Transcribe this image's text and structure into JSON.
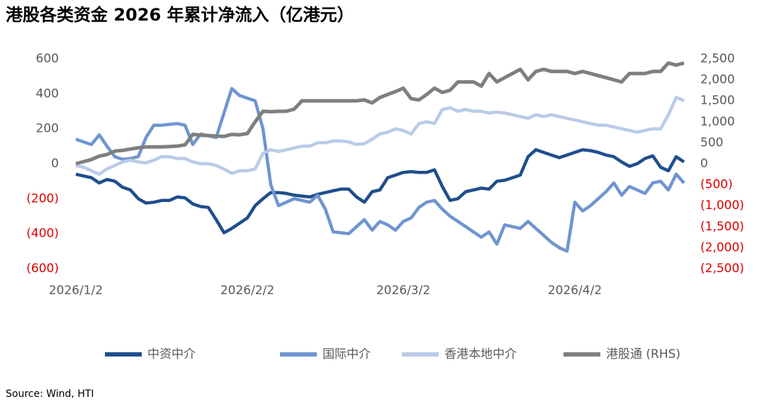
{
  "chart_data": {
    "type": "line",
    "title": "港股各类资金 2026 年累计净流入（亿港元）",
    "source": "Source: Wind, HTI",
    "categories": [
      "2026/1/2",
      null,
      null,
      null,
      null,
      null,
      null,
      null,
      null,
      null,
      null,
      null,
      null,
      null,
      null,
      null,
      null,
      null,
      null,
      null,
      null,
      null,
      "2026/2/2",
      null,
      null,
      null,
      null,
      null,
      null,
      null,
      null,
      null,
      null,
      null,
      null,
      null,
      null,
      null,
      null,
      null,
      null,
      null,
      "2026/3/2",
      null,
      null,
      null,
      null,
      null,
      null,
      null,
      null,
      null,
      null,
      null,
      null,
      null,
      null,
      null,
      null,
      null,
      null,
      null,
      null,
      null,
      "2026/4/2",
      null,
      null,
      null,
      null,
      null,
      null,
      null,
      null,
      null,
      null,
      null,
      null,
      null,
      null
    ],
    "series": [
      {
        "name": "中资中介",
        "color": "#1f4e8c",
        "values": [
          -60,
          -70,
          -80,
          -110,
          -90,
          -100,
          -135,
          -150,
          -200,
          -225,
          -220,
          -210,
          -210,
          -190,
          -195,
          -230,
          -245,
          -250,
          -320,
          -395,
          -370,
          -340,
          -310,
          -240,
          -200,
          -165,
          -165,
          -170,
          -180,
          -185,
          -190,
          -175,
          -165,
          -155,
          -145,
          -145,
          -190,
          -220,
          -160,
          -150,
          -80,
          -65,
          -50,
          -45,
          -50,
          -50,
          -35,
          -130,
          -210,
          -200,
          -160,
          -150,
          -140,
          -145,
          -100,
          -95,
          -80,
          -65,
          40,
          80,
          65,
          50,
          35,
          50,
          65,
          80,
          75,
          65,
          50,
          40,
          10,
          -15,
          0,
          30,
          45,
          -20,
          -40,
          40,
          10
        ]
      },
      {
        "name": "国际中介",
        "color": "#6f95d0",
        "values": [
          140,
          125,
          110,
          165,
          100,
          40,
          25,
          30,
          40,
          150,
          220,
          220,
          225,
          230,
          220,
          110,
          170,
          160,
          150,
          290,
          430,
          390,
          375,
          360,
          200,
          -120,
          -240,
          -220,
          -200,
          -210,
          -220,
          -180,
          -260,
          -390,
          -395,
          -400,
          -360,
          -320,
          -380,
          -330,
          -350,
          -380,
          -330,
          -310,
          -250,
          -220,
          -210,
          -260,
          -300,
          -330,
          -360,
          -390,
          -420,
          -390,
          -460,
          -350,
          -360,
          -370,
          -330,
          -370,
          -410,
          -450,
          -480,
          -500,
          -220,
          -270,
          -240,
          -200,
          -160,
          -110,
          -180,
          -130,
          -150,
          -170,
          -110,
          -100,
          -150,
          -60,
          -110
        ]
      },
      {
        "name": "香港本地中介",
        "color": "#b9cbe8",
        "values": [
          -10,
          -20,
          -40,
          -60,
          -30,
          -10,
          10,
          20,
          10,
          5,
          20,
          40,
          40,
          30,
          30,
          10,
          0,
          0,
          -10,
          -30,
          -55,
          -40,
          -40,
          -30,
          60,
          80,
          70,
          80,
          90,
          100,
          100,
          120,
          120,
          130,
          130,
          125,
          110,
          115,
          140,
          170,
          180,
          200,
          190,
          170,
          230,
          240,
          230,
          310,
          320,
          300,
          310,
          300,
          300,
          290,
          295,
          290,
          280,
          270,
          260,
          280,
          270,
          280,
          270,
          260,
          250,
          240,
          230,
          220,
          220,
          210,
          200,
          190,
          180,
          190,
          200,
          200,
          280,
          380,
          360
        ]
      },
      {
        "name": "港股通 (RHS)",
        "color": "#7f7f7f",
        "axis": "y2",
        "values": [
          0,
          50,
          100,
          180,
          220,
          300,
          320,
          350,
          380,
          400,
          400,
          400,
          410,
          420,
          450,
          700,
          680,
          670,
          660,
          650,
          700,
          690,
          720,
          1000,
          1250,
          1240,
          1250,
          1250,
          1300,
          1500,
          1500,
          1500,
          1500,
          1500,
          1500,
          1500,
          1500,
          1520,
          1450,
          1580,
          1650,
          1720,
          1800,
          1550,
          1520,
          1650,
          1800,
          1700,
          1750,
          1950,
          1950,
          1950,
          1850,
          2150,
          1950,
          2050,
          2150,
          2250,
          2000,
          2200,
          2250,
          2200,
          2200,
          2200,
          2150,
          2200,
          2150,
          2100,
          2050,
          2000,
          1950,
          2150,
          2150,
          2150,
          2200,
          2200,
          2400,
          2350,
          2400
        ]
      }
    ],
    "ylim": [
      -600,
      600
    ],
    "yticks": [
      {
        "value": -600,
        "label": "(600)"
      },
      {
        "value": -400,
        "label": "(400)"
      },
      {
        "value": -200,
        "label": "(200)"
      },
      0,
      200,
      400,
      600
    ],
    "y2lim": [
      -2500,
      2500
    ],
    "y2ticks": [
      {
        "value": -2500,
        "label": "(2,500)"
      },
      {
        "value": -2000,
        "label": "(2,000)"
      },
      {
        "value": -1500,
        "label": "(1,500)"
      },
      {
        "value": -1000,
        "label": "(1,000)"
      },
      {
        "value": -500,
        "label": "(500)"
      },
      0,
      500,
      {
        "value": 1000,
        "label": "1,000"
      },
      {
        "value": 1500,
        "label": "1,500"
      },
      {
        "value": 2000,
        "label": "2,000"
      },
      {
        "value": 2500,
        "label": "2,500"
      }
    ],
    "negative_tick_color": "#e00000",
    "tick_color": "#595959",
    "legend": "bottom",
    "grid": false
  }
}
